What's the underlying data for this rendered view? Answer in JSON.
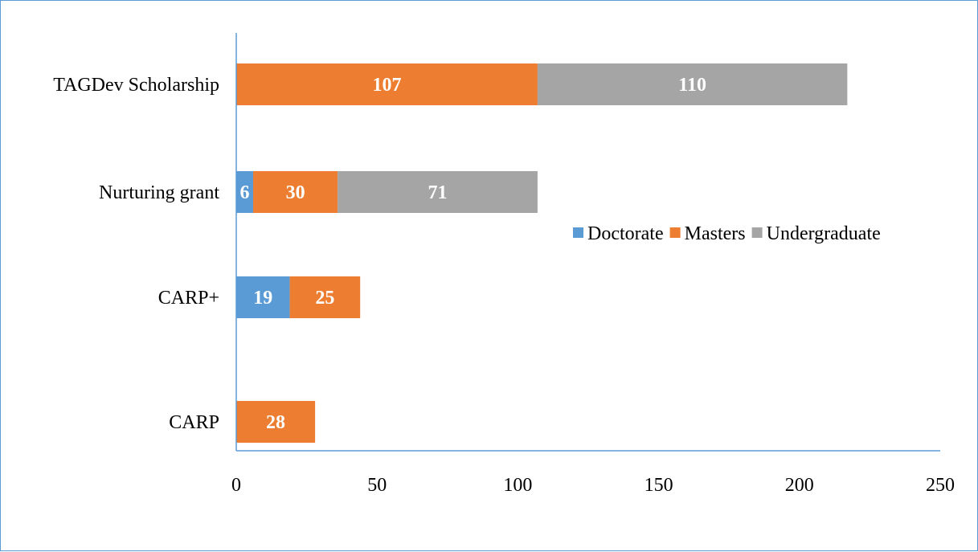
{
  "chart_data": {
    "type": "bar",
    "orientation": "horizontal",
    "stacked": true,
    "categories": [
      "CARP",
      "CARP+",
      "Nurturing grant",
      "TAGDev Scholarship"
    ],
    "series": [
      {
        "name": "Doctorate",
        "color": "#5b9bd5",
        "values": [
          0,
          19,
          6,
          0
        ]
      },
      {
        "name": "Masters",
        "color": "#ed7d31",
        "values": [
          28,
          25,
          30,
          107
        ]
      },
      {
        "name": "Undergraduate",
        "color": "#a5a5a5",
        "values": [
          0,
          0,
          71,
          110
        ]
      }
    ],
    "data_labels": true,
    "xlim": [
      0,
      250
    ],
    "xticks": [
      0,
      50,
      100,
      150,
      200,
      250
    ],
    "title": "",
    "xlabel": "",
    "ylabel": "",
    "grid": false,
    "legend": "right"
  }
}
